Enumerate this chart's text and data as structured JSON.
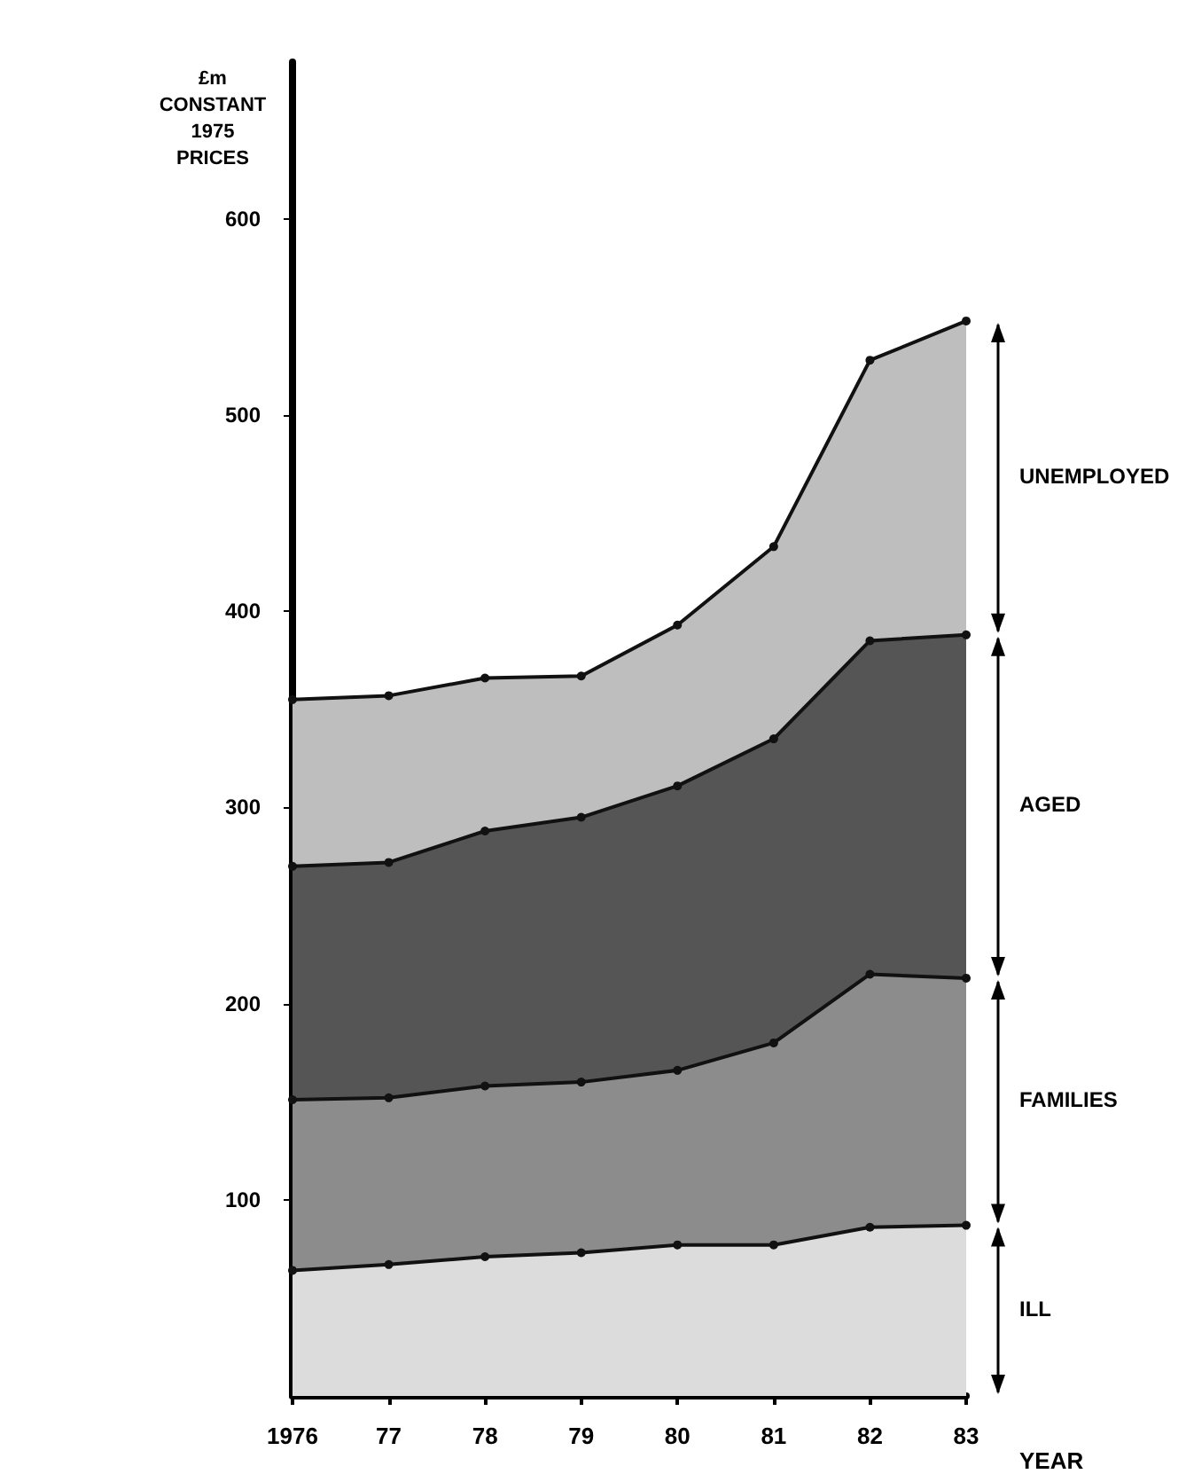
{
  "chart_data": {
    "type": "area",
    "stacked": true,
    "ylabel": "£m\nCONSTANT\n1975\nPRICES",
    "xlabel": "YEAR",
    "categories": [
      "1976",
      "77",
      "78",
      "79",
      "80",
      "81",
      "82",
      "83"
    ],
    "series": [
      {
        "name": "ILL",
        "color": "#dcdcdc",
        "values": [
          64,
          67,
          71,
          73,
          77,
          77,
          86,
          87
        ]
      },
      {
        "name": "FAMILIES",
        "color": "#8c8c8c",
        "values": [
          87,
          85,
          87,
          87,
          89,
          103,
          129,
          126
        ]
      },
      {
        "name": "AGED",
        "color": "#555555",
        "values": [
          119,
          120,
          130,
          135,
          145,
          155,
          170,
          175
        ]
      },
      {
        "name": "UNEMPLOYED",
        "color": "#bebebe",
        "values": [
          85,
          85,
          78,
          72,
          82,
          98,
          143,
          160
        ]
      }
    ],
    "ylim": [
      0,
      680
    ],
    "yticks": [
      100,
      200,
      300,
      400,
      500,
      600
    ],
    "grid": false,
    "legend": false,
    "marker": "circle",
    "line_style": "solid"
  }
}
